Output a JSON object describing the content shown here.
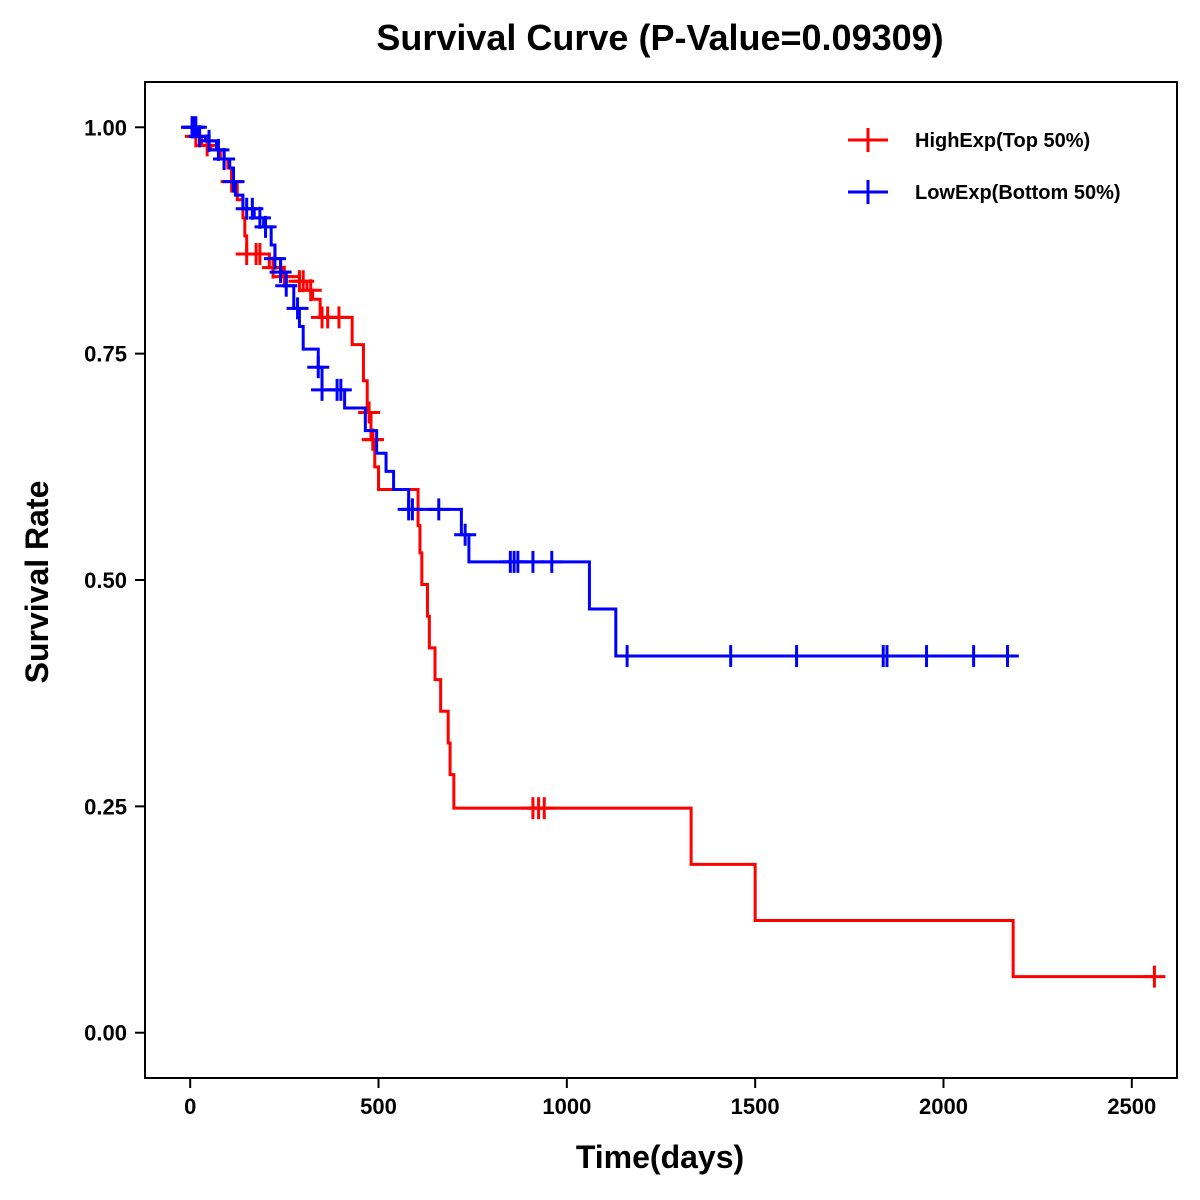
{
  "chart_data": {
    "type": "line",
    "subtype": "kaplan-meier",
    "title": "Survival Curve (P-Value=0.09309)",
    "xlabel": "Time(days)",
    "ylabel": "Survival Rate",
    "xlim": [
      -120,
      2620
    ],
    "ylim": [
      -0.05,
      1.05
    ],
    "xticks": [
      0,
      500,
      1000,
      1500,
      2000,
      2500
    ],
    "xtick_labels": [
      "0",
      "500",
      "1000",
      "1500",
      "2000",
      "2500"
    ],
    "yticks": [
      0,
      0.25,
      0.5,
      0.75,
      1.0
    ],
    "ytick_labels": [
      "0.00",
      "0.25",
      "0.50",
      "0.75",
      "1.00"
    ],
    "grid": false,
    "legend_position": "top-right",
    "series": [
      {
        "name": "HighExp(Top 50%)",
        "color": "#ff0000",
        "steps": [
          [
            0,
            1.0
          ],
          [
            15,
            0.99
          ],
          [
            30,
            0.98
          ],
          [
            55,
            0.975
          ],
          [
            80,
            0.965
          ],
          [
            100,
            0.955
          ],
          [
            110,
            0.94
          ],
          [
            125,
            0.92
          ],
          [
            140,
            0.9
          ],
          [
            145,
            0.88
          ],
          [
            150,
            0.86
          ],
          [
            210,
            0.845
          ],
          [
            245,
            0.835
          ],
          [
            290,
            0.83
          ],
          [
            310,
            0.82
          ],
          [
            325,
            0.81
          ],
          [
            345,
            0.79
          ],
          [
            430,
            0.76
          ],
          [
            460,
            0.72
          ],
          [
            470,
            0.685
          ],
          [
            480,
            0.655
          ],
          [
            490,
            0.625
          ],
          [
            500,
            0.6
          ],
          [
            605,
            0.56
          ],
          [
            610,
            0.53
          ],
          [
            615,
            0.495
          ],
          [
            630,
            0.46
          ],
          [
            635,
            0.425
          ],
          [
            650,
            0.39
          ],
          [
            665,
            0.355
          ],
          [
            685,
            0.32
          ],
          [
            690,
            0.285
          ],
          [
            700,
            0.248
          ],
          [
            1330,
            0.186
          ],
          [
            1500,
            0.124
          ],
          [
            2185,
            0.062
          ],
          [
            2560,
            0.062
          ]
        ],
        "censor_times": [
          5,
          15,
          25,
          45,
          90,
          110,
          150,
          175,
          185,
          220,
          250,
          290,
          300,
          320,
          350,
          365,
          395,
          475,
          485,
          485,
          910,
          925,
          940,
          2560
        ]
      },
      {
        "name": "LowExp(Bottom 50%)",
        "color": "#0000ff",
        "steps": [
          [
            0,
            1.0
          ],
          [
            20,
            0.99
          ],
          [
            40,
            0.985
          ],
          [
            70,
            0.975
          ],
          [
            90,
            0.965
          ],
          [
            105,
            0.955
          ],
          [
            115,
            0.94
          ],
          [
            120,
            0.925
          ],
          [
            140,
            0.91
          ],
          [
            170,
            0.9
          ],
          [
            195,
            0.89
          ],
          [
            215,
            0.87
          ],
          [
            225,
            0.855
          ],
          [
            240,
            0.84
          ],
          [
            255,
            0.825
          ],
          [
            275,
            0.8
          ],
          [
            290,
            0.78
          ],
          [
            300,
            0.755
          ],
          [
            340,
            0.735
          ],
          [
            350,
            0.71
          ],
          [
            410,
            0.69
          ],
          [
            465,
            0.665
          ],
          [
            495,
            0.64
          ],
          [
            520,
            0.62
          ],
          [
            540,
            0.6
          ],
          [
            580,
            0.578
          ],
          [
            720,
            0.55
          ],
          [
            740,
            0.52
          ],
          [
            1060,
            0.468
          ],
          [
            1130,
            0.416
          ],
          [
            2200,
            0.416
          ]
        ],
        "censor_times": [
          5,
          10,
          15,
          25,
          50,
          75,
          90,
          115,
          150,
          165,
          185,
          200,
          225,
          240,
          255,
          285,
          340,
          350,
          390,
          400,
          580,
          590,
          660,
          730,
          850,
          860,
          870,
          910,
          960,
          1160,
          1435,
          1610,
          1840,
          1850,
          1955,
          2080,
          2170
        ]
      }
    ]
  }
}
